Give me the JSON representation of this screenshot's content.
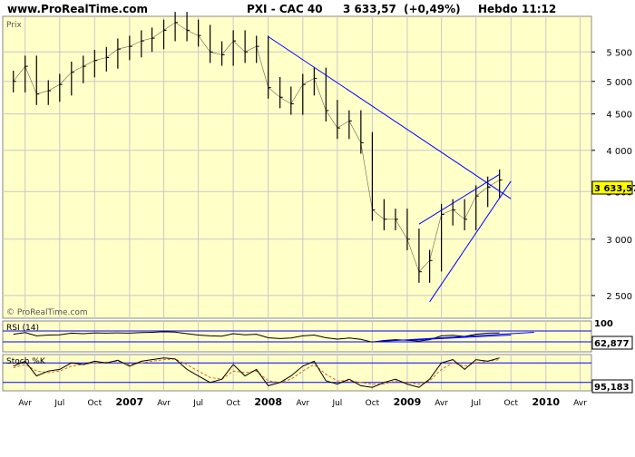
{
  "header": {
    "site": "www.ProRealTime.com",
    "instrument": "PXI - CAC 40",
    "last_value": "3 633,57",
    "change": "(+0,49%)",
    "period": "Hebdo",
    "time": "11:12"
  },
  "colors": {
    "panel_bg": "#ffffc8",
    "grid": "#c8c8c8",
    "trendline": "#0000ff",
    "price_bar": "#000000",
    "stoch_k": "#000000",
    "stoch_d": "#d2691e",
    "last_value_box": "#ffff00"
  },
  "chart_data": [
    {
      "type": "ohlc",
      "panel": "price",
      "label": "Prix",
      "watermark": "© ProRealTime.com",
      "scale": "log",
      "ylim": [
        2350,
        6100
      ],
      "yticks": [
        2500,
        3000,
        3500,
        4000,
        4500,
        5000,
        5500
      ],
      "ytick_labels": [
        "2 500",
        "3 000",
        "3 500",
        "4 000",
        "4 500",
        "5 000",
        "5 500"
      ],
      "last_value_label": "3 633,57",
      "series": [
        {
          "name": "CAC 40",
          "x": [
            "2006-03",
            "2006-04",
            "2006-05",
            "2006-06",
            "2006-07",
            "2006-08",
            "2006-09",
            "2006-10",
            "2006-11",
            "2006-12",
            "2007-01",
            "2007-02",
            "2007-03",
            "2007-04",
            "2007-05",
            "2007-06",
            "2007-07",
            "2007-08",
            "2007-09",
            "2007-10",
            "2007-11",
            "2007-12",
            "2008-01",
            "2008-02",
            "2008-03",
            "2008-04",
            "2008-05",
            "2008-06",
            "2008-07",
            "2008-08",
            "2008-09",
            "2008-10",
            "2008-11",
            "2008-12",
            "2009-01",
            "2009-02",
            "2009-03",
            "2009-04",
            "2009-05",
            "2009-06",
            "2009-07",
            "2009-08",
            "2009-09"
          ],
          "values": [
            5000,
            5250,
            4800,
            4850,
            4950,
            5150,
            5250,
            5350,
            5400,
            5550,
            5600,
            5700,
            5750,
            5900,
            6050,
            5900,
            5800,
            5500,
            5450,
            5700,
            5500,
            5600,
            4900,
            4750,
            4650,
            4950,
            5050,
            4550,
            4300,
            4400,
            4100,
            3300,
            3200,
            3200,
            3000,
            2700,
            2800,
            3250,
            3300,
            3200,
            3450,
            3550,
            3633.57
          ]
        }
      ],
      "trendlines": [
        {
          "from": [
            "2008-01",
            5780
          ],
          "to": [
            "2009-10",
            3420
          ]
        },
        {
          "from": [
            "2009-02",
            3150
          ],
          "to": [
            "2009-09",
            3700
          ]
        },
        {
          "from": [
            "2009-03",
            2450
          ],
          "to": [
            "2009-10",
            3620
          ]
        }
      ]
    },
    {
      "type": "line",
      "panel": "rsi",
      "label": "RSI (14)",
      "ylim": [
        0,
        100
      ],
      "ytick_labels": [
        "100",
        "30"
      ],
      "levels": [
        70,
        30
      ],
      "last_value_label": "62,877",
      "series": [
        {
          "name": "RSI (14)",
          "values": [
            58,
            64,
            52,
            55,
            56,
            62,
            60,
            63,
            62,
            63,
            62,
            64,
            65,
            67,
            66,
            60,
            55,
            52,
            51,
            60,
            56,
            58,
            45,
            42,
            44,
            52,
            55,
            45,
            40,
            44,
            39,
            29,
            35,
            38,
            36,
            33,
            38,
            52,
            54,
            50,
            58,
            62,
            62.877
          ]
        }
      ],
      "trendlines": [
        {
          "from": [
            "2008-10",
            30
          ],
          "to": [
            "2009-12",
            65
          ]
        },
        {
          "from": [
            "2009-01",
            36
          ],
          "to": [
            "2009-10",
            55
          ]
        }
      ]
    },
    {
      "type": "line",
      "panel": "stochastic",
      "label": "Stoch %K",
      "ylim": [
        0,
        100
      ],
      "ytick_labels": [
        "20"
      ],
      "levels": [
        80,
        20
      ],
      "last_value_label": "95,183",
      "series": [
        {
          "name": "Stoch %K",
          "values": [
            70,
            85,
            40,
            55,
            60,
            80,
            75,
            85,
            80,
            88,
            70,
            85,
            90,
            95,
            92,
            60,
            40,
            20,
            30,
            75,
            40,
            60,
            10,
            20,
            40,
            70,
            85,
            25,
            15,
            30,
            10,
            5,
            20,
            30,
            15,
            5,
            30,
            80,
            90,
            60,
            90,
            85,
            95.183
          ]
        },
        {
          "name": "Stoch %D",
          "values": [
            65,
            75,
            55,
            50,
            55,
            70,
            75,
            80,
            82,
            85,
            75,
            80,
            85,
            90,
            92,
            75,
            55,
            35,
            30,
            55,
            50,
            55,
            25,
            20,
            30,
            55,
            75,
            45,
            25,
            25,
            20,
            15,
            15,
            25,
            20,
            15,
            25,
            60,
            80,
            70,
            80,
            85,
            90
          ]
        }
      ]
    }
  ],
  "time_axis": {
    "labels": [
      "Avr",
      "Jul",
      "Oct",
      "2007",
      "Avr",
      "Jul",
      "Oct",
      "2008",
      "Avr",
      "Jul",
      "Oct",
      "2009",
      "Avr",
      "Jul",
      "Oct",
      "2010",
      "Avr"
    ],
    "dates": [
      "2006-04",
      "2006-07",
      "2006-10",
      "2007-01",
      "2007-04",
      "2007-07",
      "2007-10",
      "2008-01",
      "2008-04",
      "2008-07",
      "2008-10",
      "2009-01",
      "2009-04",
      "2009-07",
      "2009-10",
      "2010-01",
      "2010-04"
    ],
    "range": [
      "2006-02-15",
      "2010-05-15"
    ]
  }
}
